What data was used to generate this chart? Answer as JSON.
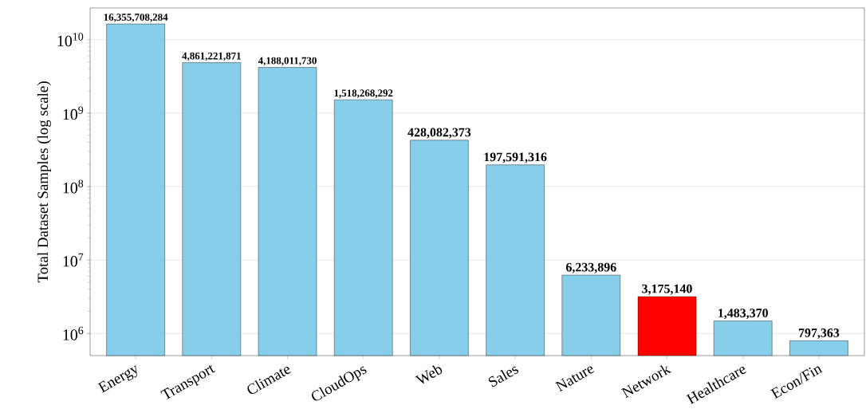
{
  "chart_data": {
    "type": "bar",
    "ylabel": "Total Dataset Samples (log scale)",
    "categories": [
      "Energy",
      "Transport",
      "Climate",
      "CloudOps",
      "Web",
      "Sales",
      "Nature",
      "Network",
      "Healthcare",
      "Econ/Fin"
    ],
    "values": [
      16355708284,
      4861221871,
      4188011730,
      1518268292,
      428082373,
      197591316,
      6233896,
      3175140,
      1483370,
      797363
    ],
    "value_labels": [
      "16,355,708,284",
      "4,861,221,871",
      "4,188,011,730",
      "1,518,268,292",
      "428,082,373",
      "197,591,316",
      "6,233,896",
      "3,175,140",
      "1,483,370",
      "797,363"
    ],
    "colors": [
      "#87ceeb",
      "#87ceeb",
      "#87ceeb",
      "#87ceeb",
      "#87ceeb",
      "#87ceeb",
      "#87ceeb",
      "#ff0000",
      "#87ceeb",
      "#87ceeb"
    ],
    "log": "y",
    "ylim": [
      500000,
      27000000000
    ],
    "yticks": [
      {
        "value": 1000000,
        "label": "10$^{6}$"
      },
      {
        "value": 10000000,
        "label": "10$^{7}$"
      },
      {
        "value": 100000000,
        "label": "10$^{8}$"
      },
      {
        "value": 1000000000,
        "label": "10$^{9}$"
      },
      {
        "value": 10000000000,
        "label": "10$^{10}$"
      }
    ],
    "grid": "y"
  }
}
